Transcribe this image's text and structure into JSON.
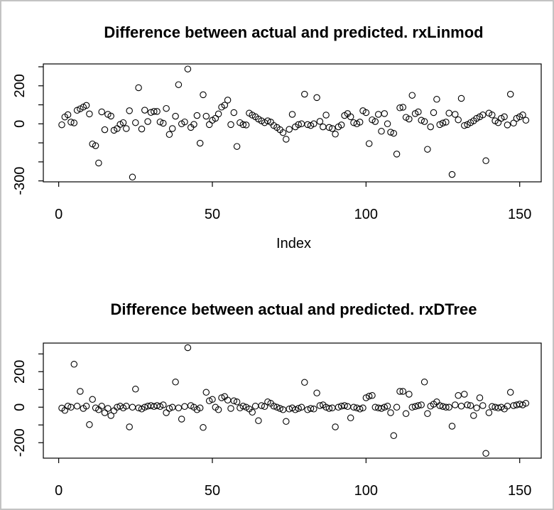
{
  "window": {
    "background": "#ffffff",
    "border_color": "#c3c3c3",
    "foreground": "#000000"
  },
  "chart_data": [
    {
      "type": "scatter",
      "title": "Difference between actual and predicted. rxLinmod",
      "xlabel": "Index",
      "ylabel": "",
      "marker": "open-circle",
      "grid": false,
      "legend": "none",
      "xlim": [
        -5,
        157
      ],
      "ylim": [
        -305,
        315
      ],
      "xticks": [
        {
          "v": 0,
          "label": "0"
        },
        {
          "v": 50,
          "label": "50"
        },
        {
          "v": 100,
          "label": "100"
        },
        {
          "v": 150,
          "label": "150"
        }
      ],
      "yticks": [
        {
          "v": 300
        },
        {
          "v": 200,
          "label": "200"
        },
        {
          "v": 100
        },
        {
          "v": 0,
          "label": "0"
        },
        {
          "v": -100
        },
        {
          "v": -200
        },
        {
          "v": -300,
          "label": "-300"
        }
      ],
      "values": [
        -5,
        36,
        48,
        9,
        5,
        71,
        79,
        88,
        97,
        52,
        -106,
        -115,
        -206,
        63,
        -31,
        50,
        41,
        -34,
        -25,
        -3,
        6,
        -25,
        69,
        -280,
        6,
        190,
        -27,
        72,
        12,
        60,
        65,
        65,
        10,
        3,
        81,
        -56,
        -25,
        40,
        206,
        0,
        10,
        288,
        -19,
        -3,
        44,
        -102,
        153,
        40,
        -4,
        19,
        29,
        52,
        88,
        98,
        125,
        -4,
        59,
        -119,
        6,
        -4,
        -6,
        56,
        46,
        37,
        25,
        16,
        6,
        16,
        9,
        -9,
        -19,
        -31,
        -46,
        -81,
        -29,
        50,
        -16,
        -4,
        0,
        156,
        -4,
        -9,
        0,
        138,
        13,
        -16,
        46,
        -19,
        -25,
        -54,
        -16,
        -6,
        44,
        54,
        37,
        6,
        0,
        9,
        69,
        59,
        -104,
        21,
        12,
        50,
        -39,
        54,
        0,
        -44,
        -50,
        -159,
        84,
        87,
        34,
        25,
        150,
        54,
        63,
        19,
        12,
        -134,
        -16,
        59,
        129,
        -4,
        4,
        9,
        56,
        -266,
        50,
        21,
        134,
        -9,
        -4,
        6,
        16,
        29,
        37,
        47,
        -194,
        56,
        47,
        16,
        6,
        29,
        37,
        -6,
        156,
        4,
        29,
        37,
        47,
        19
      ]
    },
    {
      "type": "scatter",
      "title": "Difference between actual and predicted. rxDTree",
      "xlabel": "",
      "ylabel": "",
      "marker": "open-circle",
      "grid": false,
      "legend": "none",
      "xlim": [
        -5,
        157
      ],
      "ylim": [
        -287,
        361
      ],
      "xticks": [
        {
          "v": 0,
          "label": "0"
        },
        {
          "v": 50,
          "label": "50"
        },
        {
          "v": 100,
          "label": "100"
        },
        {
          "v": 150,
          "label": "150"
        }
      ],
      "yticks": [
        {
          "v": 300
        },
        {
          "v": 200,
          "label": "200"
        },
        {
          "v": 100
        },
        {
          "v": 0,
          "label": "0"
        },
        {
          "v": -100
        },
        {
          "v": -200,
          "label": "-200"
        }
      ],
      "values": [
        -5,
        -18,
        6,
        0,
        242,
        6,
        89,
        -7,
        6,
        -98,
        44,
        -4,
        -14,
        6,
        -31,
        -7,
        -47,
        -20,
        0,
        6,
        -4,
        6,
        -111,
        0,
        102,
        -4,
        -10,
        0,
        6,
        9,
        4,
        9,
        4,
        13,
        -31,
        -7,
        0,
        142,
        -4,
        -67,
        4,
        335,
        9,
        0,
        -14,
        -4,
        -114,
        84,
        36,
        44,
        0,
        -14,
        53,
        60,
        40,
        -7,
        36,
        30,
        -4,
        6,
        0,
        -10,
        -28,
        6,
        -76,
        9,
        4,
        30,
        22,
        6,
        0,
        -7,
        -14,
        -80,
        -10,
        -4,
        -14,
        -7,
        0,
        140,
        -14,
        -7,
        -10,
        80,
        9,
        13,
        0,
        -7,
        -4,
        -111,
        0,
        6,
        9,
        4,
        -60,
        0,
        -4,
        -10,
        -4,
        53,
        62,
        66,
        0,
        -4,
        -7,
        0,
        6,
        -31,
        -160,
        0,
        89,
        89,
        -36,
        73,
        0,
        4,
        9,
        13,
        142,
        -36,
        6,
        17,
        30,
        9,
        4,
        0,
        0,
        -107,
        13,
        66,
        6,
        73,
        13,
        9,
        -47,
        -4,
        53,
        9,
        -260,
        -31,
        4,
        0,
        -4,
        0,
        -10,
        6,
        84,
        9,
        13,
        17,
        13,
        22
      ]
    }
  ]
}
